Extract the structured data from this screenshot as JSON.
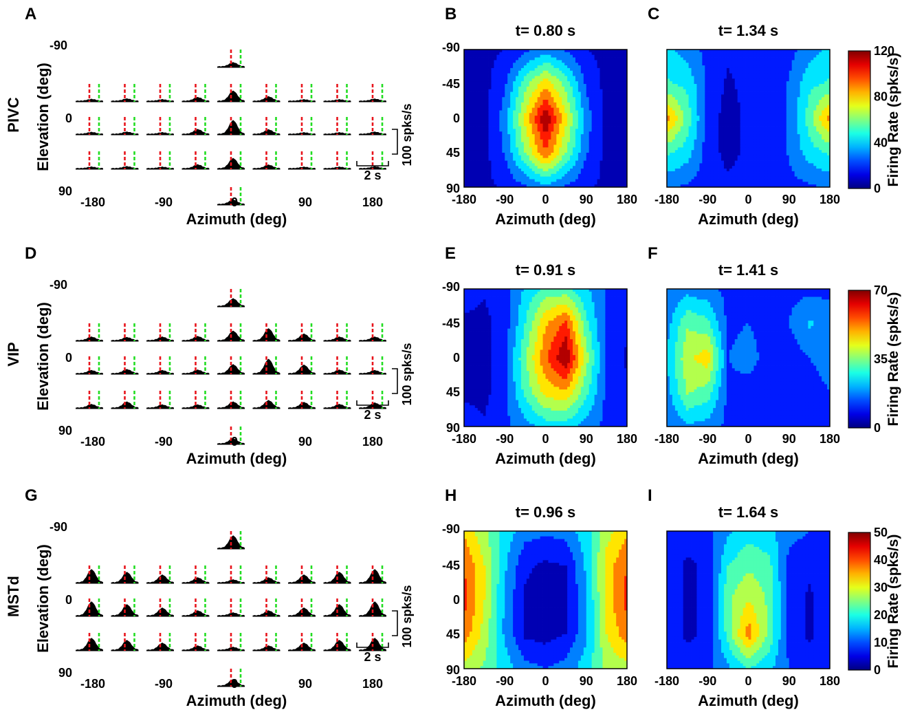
{
  "panel_letters": [
    "A",
    "B",
    "C",
    "D",
    "E",
    "F",
    "G",
    "H",
    "I"
  ],
  "rows": [
    {
      "area": "PIVC",
      "psth_letter": "A",
      "map_letters": [
        "B",
        "C"
      ],
      "times": [
        "t= 0.80 s",
        "t= 1.34 s"
      ],
      "colorbar": {
        "label": "Firing Rate (spks/s)",
        "ticks": [
          "0",
          "40",
          "80",
          "120"
        ],
        "max": 120
      }
    },
    {
      "area": "VIP",
      "psth_letter": "D",
      "map_letters": [
        "E",
        "F"
      ],
      "times": [
        "t= 0.91 s",
        "t= 1.41 s"
      ],
      "colorbar": {
        "label": "Firing Rate (spks/s)",
        "ticks": [
          "0",
          "35",
          "70"
        ],
        "max": 70
      }
    },
    {
      "area": "MSTd",
      "psth_letter": "G",
      "map_letters": [
        "H",
        "I"
      ],
      "times": [
        "t= 0.96 s",
        "t= 1.64 s"
      ],
      "colorbar": {
        "label": "Firing Rate (spks/s)",
        "ticks": [
          "0",
          "10",
          "20",
          "30",
          "40",
          "50"
        ],
        "max": 50
      }
    }
  ],
  "psth_axes": {
    "xlabel": "Azimuth (deg)",
    "ylabel": "Elevation (deg)",
    "x_ticks": [
      "-180",
      "-90",
      "0",
      "90",
      "180"
    ],
    "y_ticks": [
      "-90",
      "0",
      "90"
    ],
    "scale_y": "100 spks/s",
    "scale_x": "2 s"
  },
  "map_axes": {
    "xlabel": "Azimuth (deg)",
    "x_ticks": [
      "-180",
      "-90",
      "0",
      "90",
      "180"
    ],
    "y_ticks": [
      "-90",
      "-45",
      "0",
      "45",
      "90"
    ]
  },
  "colors": {
    "onset_line": "#e8141c",
    "offset_line": "#22dd22",
    "psth_fill": "#000000"
  },
  "chart_data": [
    {
      "type": "heatmap",
      "panel": "B",
      "title": "t= 0.80 s",
      "xlabel": "Azimuth (deg)",
      "ylabel": "",
      "x": [
        -180,
        -135,
        -90,
        -45,
        0,
        45,
        90,
        135,
        180
      ],
      "y": [
        -90,
        -45,
        0,
        45,
        90
      ],
      "zlim": [
        0,
        120
      ],
      "z": [
        [
          8,
          9,
          12,
          20,
          30,
          22,
          12,
          9,
          8
        ],
        [
          6,
          8,
          22,
          55,
          80,
          55,
          22,
          8,
          6
        ],
        [
          5,
          7,
          30,
          75,
          120,
          75,
          30,
          7,
          5
        ],
        [
          5,
          8,
          25,
          60,
          95,
          60,
          25,
          8,
          5
        ],
        [
          8,
          9,
          14,
          22,
          32,
          22,
          14,
          9,
          8
        ]
      ]
    },
    {
      "type": "heatmap",
      "panel": "C",
      "title": "t= 1.34 s",
      "xlabel": "Azimuth (deg)",
      "ylabel": "",
      "x": [
        -180,
        -135,
        -90,
        -45,
        0,
        45,
        90,
        135,
        180
      ],
      "y": [
        -90,
        -45,
        0,
        45,
        90
      ],
      "zlim": [
        0,
        120
      ],
      "z": [
        [
          40,
          30,
          20,
          14,
          16,
          16,
          20,
          30,
          40
        ],
        [
          50,
          45,
          22,
          10,
          16,
          16,
          25,
          45,
          50
        ],
        [
          90,
          55,
          20,
          6,
          15,
          15,
          25,
          55,
          90
        ],
        [
          50,
          42,
          18,
          8,
          15,
          15,
          25,
          42,
          50
        ],
        [
          26,
          22,
          18,
          15,
          16,
          16,
          20,
          22,
          26
        ]
      ]
    },
    {
      "type": "heatmap",
      "panel": "E",
      "title": "t= 0.91 s",
      "xlabel": "Azimuth (deg)",
      "ylabel": "",
      "x": [
        -180,
        -135,
        -90,
        -45,
        0,
        45,
        90,
        135,
        180
      ],
      "y": [
        -90,
        -45,
        0,
        45,
        90
      ],
      "zlim": [
        0,
        70
      ],
      "z": [
        [
          10,
          8,
          12,
          22,
          30,
          30,
          22,
          14,
          12
        ],
        [
          6,
          5,
          10,
          28,
          48,
          58,
          30,
          12,
          8
        ],
        [
          4,
          4,
          12,
          34,
          55,
          70,
          38,
          12,
          6
        ],
        [
          6,
          5,
          12,
          30,
          45,
          48,
          30,
          12,
          8
        ],
        [
          10,
          8,
          12,
          18,
          24,
          24,
          18,
          12,
          10
        ]
      ]
    },
    {
      "type": "heatmap",
      "panel": "F",
      "title": "t= 1.41 s",
      "xlabel": "Azimuth (deg)",
      "ylabel": "",
      "x": [
        -180,
        -135,
        -90,
        -45,
        0,
        45,
        90,
        135,
        180
      ],
      "y": [
        -90,
        -45,
        0,
        45,
        90
      ],
      "zlim": [
        0,
        70
      ],
      "z": [
        [
          14,
          18,
          16,
          12,
          12,
          12,
          12,
          12,
          12
        ],
        [
          18,
          34,
          30,
          12,
          14,
          10,
          14,
          22,
          18
        ],
        [
          22,
          40,
          46,
          14,
          18,
          10,
          10,
          14,
          16
        ],
        [
          18,
          36,
          32,
          12,
          10,
          8,
          10,
          12,
          14
        ],
        [
          14,
          20,
          18,
          12,
          10,
          12,
          12,
          12,
          12
        ]
      ]
    },
    {
      "type": "heatmap",
      "panel": "H",
      "title": "t= 0.96 s",
      "xlabel": "Azimuth (deg)",
      "ylabel": "",
      "x": [
        -180,
        -135,
        -90,
        -45,
        0,
        45,
        90,
        135,
        180
      ],
      "y": [
        -90,
        -45,
        0,
        45,
        90
      ],
      "zlim": [
        0,
        50
      ],
      "z": [
        [
          34,
          26,
          18,
          12,
          11,
          12,
          18,
          28,
          34
        ],
        [
          40,
          30,
          16,
          6,
          4,
          5,
          16,
          32,
          40
        ],
        [
          42,
          30,
          14,
          4,
          2,
          4,
          14,
          32,
          42
        ],
        [
          38,
          28,
          14,
          4,
          3,
          5,
          14,
          30,
          38
        ],
        [
          28,
          24,
          18,
          12,
          10,
          12,
          18,
          26,
          28
        ]
      ]
    },
    {
      "type": "heatmap",
      "panel": "I",
      "title": "t= 1.64 s",
      "xlabel": "Azimuth (deg)",
      "ylabel": "",
      "x": [
        -180,
        -135,
        -90,
        -45,
        0,
        45,
        90,
        135,
        180
      ],
      "y": [
        -90,
        -45,
        0,
        45,
        90
      ],
      "zlim": [
        0,
        50
      ],
      "z": [
        [
          10,
          8,
          8,
          14,
          18,
          16,
          12,
          10,
          10
        ],
        [
          8,
          4,
          6,
          20,
          24,
          22,
          8,
          6,
          8
        ],
        [
          8,
          4,
          6,
          24,
          30,
          24,
          8,
          4,
          8
        ],
        [
          8,
          4,
          6,
          22,
          38,
          24,
          8,
          4,
          8
        ],
        [
          10,
          8,
          8,
          14,
          20,
          16,
          10,
          8,
          10
        ]
      ]
    },
    {
      "type": "heatmap",
      "panel": "A",
      "title": "",
      "xlabel": "Azimuth (deg)",
      "ylabel": "Elevation (deg)",
      "x": [
        -180,
        -135,
        -90,
        -45,
        0,
        45,
        90,
        135,
        180
      ],
      "y": [
        -90,
        -45,
        0,
        45,
        90
      ],
      "zlim": [
        0,
        120
      ],
      "z": [
        [
          null,
          null,
          null,
          null,
          28,
          null,
          null,
          null,
          null
        ],
        [
          12,
          15,
          10,
          25,
          70,
          30,
          9,
          7,
          14
        ],
        [
          12,
          14,
          10,
          32,
          95,
          30,
          9,
          7,
          14
        ],
        [
          10,
          13,
          9,
          26,
          70,
          24,
          8,
          6,
          12
        ],
        [
          null,
          null,
          null,
          null,
          30,
          null,
          null,
          null,
          null
        ]
      ]
    },
    {
      "type": "heatmap",
      "panel": "D",
      "title": "",
      "xlabel": "Azimuth (deg)",
      "ylabel": "Elevation (deg)",
      "x": [
        -180,
        -135,
        -90,
        -45,
        0,
        45,
        90,
        135,
        180
      ],
      "y": [
        -90,
        -45,
        0,
        45,
        90
      ],
      "zlim": [
        0,
        70
      ],
      "z": [
        [
          null,
          null,
          null,
          null,
          30,
          null,
          null,
          null,
          null
        ],
        [
          14,
          12,
          14,
          16,
          38,
          48,
          26,
          14,
          14
        ],
        [
          12,
          16,
          12,
          14,
          36,
          58,
          34,
          14,
          12
        ],
        [
          14,
          24,
          12,
          12,
          24,
          30,
          22,
          14,
          20
        ],
        [
          null,
          null,
          null,
          null,
          20,
          null,
          null,
          null,
          null
        ]
      ]
    },
    {
      "type": "heatmap",
      "panel": "G",
      "title": "",
      "xlabel": "Azimuth (deg)",
      "ylabel": "Elevation (deg)",
      "x": [
        -180,
        -135,
        -90,
        -45,
        0,
        45,
        90,
        135,
        180
      ],
      "y": [
        -90,
        -45,
        0,
        45,
        90
      ],
      "zlim": [
        0,
        50
      ],
      "z": [
        [
          null,
          null,
          null,
          null,
          36,
          null,
          null,
          null,
          null
        ],
        [
          38,
          30,
          22,
          14,
          8,
          14,
          22,
          30,
          38
        ],
        [
          40,
          32,
          22,
          14,
          8,
          14,
          22,
          32,
          40
        ],
        [
          34,
          28,
          20,
          12,
          8,
          12,
          20,
          28,
          34
        ],
        [
          null,
          null,
          null,
          null,
          18,
          null,
          null,
          null,
          null
        ]
      ]
    }
  ]
}
